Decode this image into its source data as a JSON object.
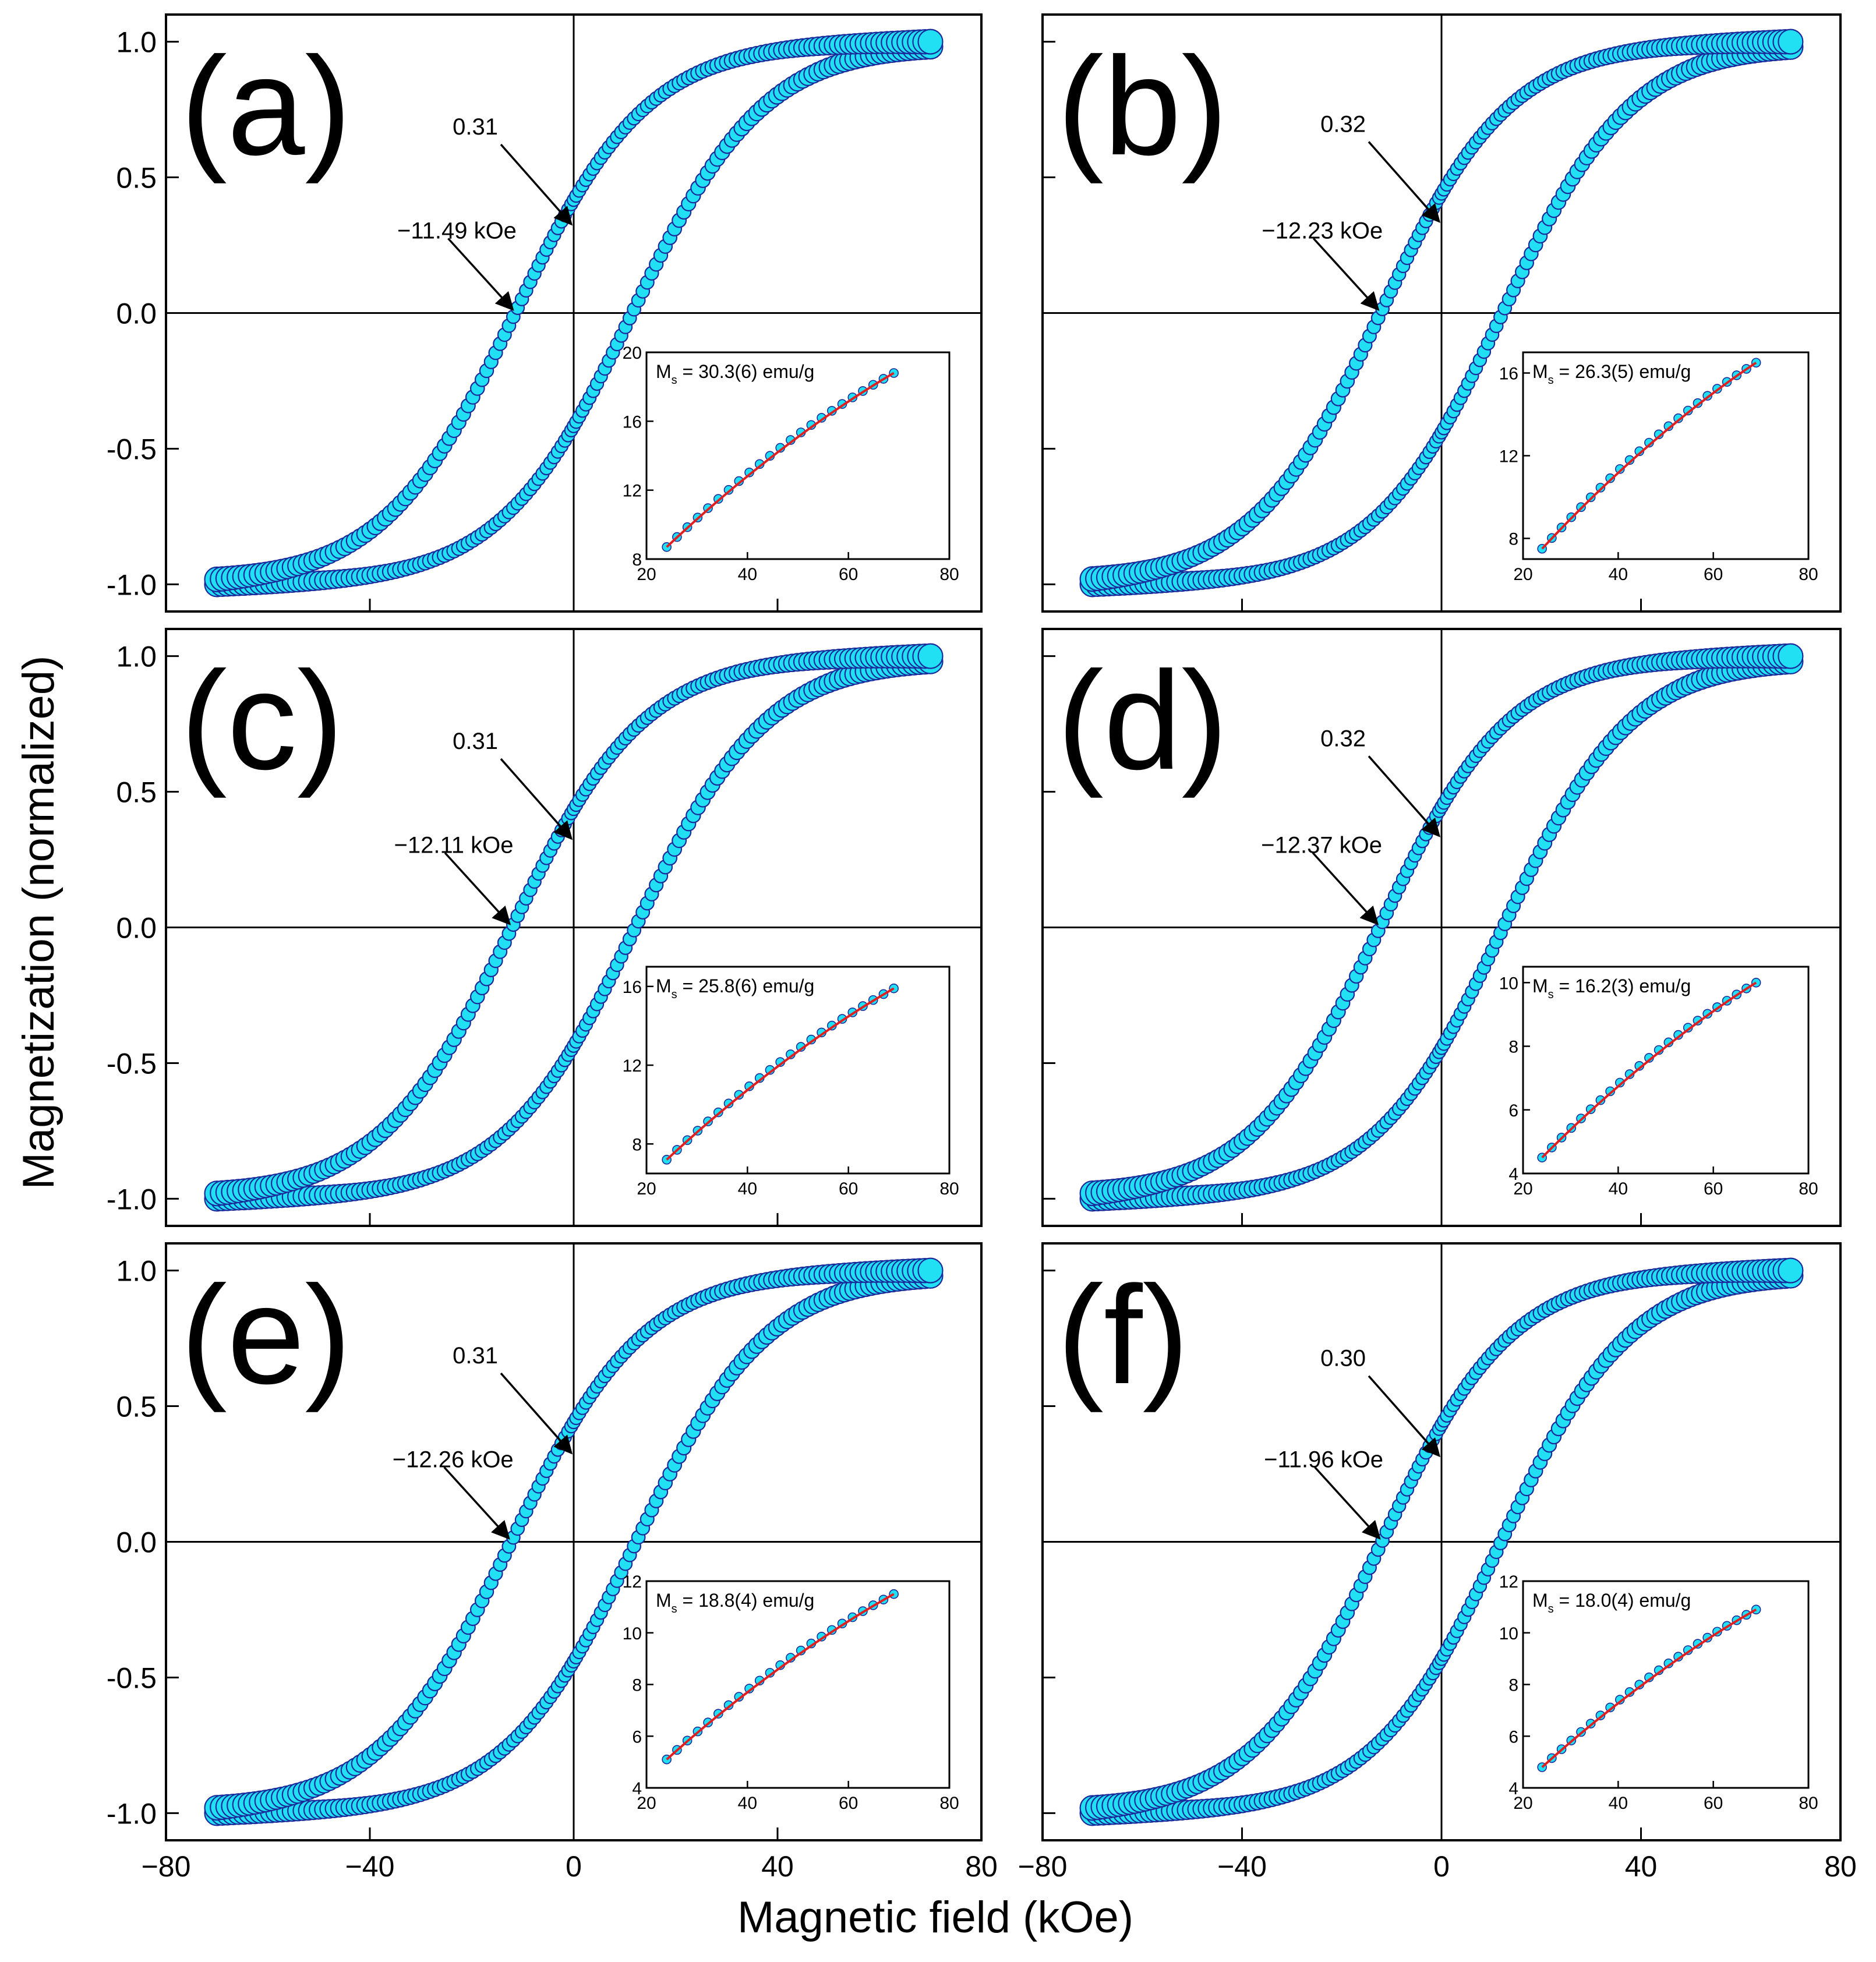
{
  "chart_data": {
    "type": "scatter",
    "xlabel": "Magnetic field (kOe)",
    "ylabel": "Magnetization (normalized)",
    "xlim": [
      -80,
      80
    ],
    "ylim": [
      -1.1,
      1.1
    ],
    "x_ticks": [
      -80,
      -40,
      0,
      40,
      80
    ],
    "x_tick_labels": [
      "−80",
      "−40",
      "0",
      "40",
      "80"
    ],
    "y_ticks": [
      1.0,
      0.5,
      0.0,
      -0.5,
      -1.0
    ],
    "y_tick_labels": [
      "1.0",
      "0.5",
      "0.0",
      "-0.5",
      "-1.0"
    ],
    "field_max": 70,
    "marker_color": "#22e0f4",
    "marker_edge_color": "#1a2a9a",
    "fit_color": "#e02020",
    "inset_xlim": [
      20,
      80
    ],
    "inset_x_ticks": [
      "20",
      "40",
      "60",
      "80"
    ],
    "inset_x_min": 24,
    "inset_x_max": 69,
    "panels": [
      {
        "label": "(a)",
        "remanence": 0.31,
        "remanence_label": "0.31",
        "coercivity": -11.49,
        "coercivity_label": "−11.49 kOe",
        "inset": {
          "ms_prefix": "M",
          "ms_sub": "s",
          "ms_value": " = 30.3(6) emu/g",
          "ylim": [
            8,
            20
          ],
          "y_ticks": [
            8,
            12,
            16,
            20
          ],
          "y_tick_labels": [
            "8",
            "12",
            "16",
            "20"
          ],
          "y_start": 8.7,
          "y_end": 18.8
        }
      },
      {
        "label": "(b)",
        "remanence": 0.32,
        "remanence_label": "0.32",
        "coercivity": -12.23,
        "coercivity_label": "−12.23 kOe",
        "inset": {
          "ms_prefix": "M",
          "ms_sub": "s",
          "ms_value": " = 26.3(5) emu/g",
          "ylim": [
            7,
            17
          ],
          "y_ticks": [
            8,
            12,
            16
          ],
          "y_tick_labels": [
            "8",
            "12",
            "16"
          ],
          "y_start": 7.5,
          "y_end": 16.5
        }
      },
      {
        "label": "(c)",
        "remanence": 0.31,
        "remanence_label": "0.31",
        "coercivity": -12.11,
        "coercivity_label": "−12.11 kOe",
        "inset": {
          "ms_prefix": "M",
          "ms_sub": "s",
          "ms_value": " = 25.8(6) emu/g",
          "ylim": [
            6.5,
            17
          ],
          "y_ticks": [
            8,
            12,
            16
          ],
          "y_tick_labels": [
            "8",
            "12",
            "16"
          ],
          "y_start": 7.2,
          "y_end": 15.9
        }
      },
      {
        "label": "(d)",
        "remanence": 0.32,
        "remanence_label": "0.32",
        "coercivity": -12.37,
        "coercivity_label": "−12.37 kOe",
        "inset": {
          "ms_prefix": "M",
          "ms_sub": "s",
          "ms_value": " = 16.2(3) emu/g",
          "ylim": [
            4,
            10.5
          ],
          "y_ticks": [
            4,
            6,
            8,
            10
          ],
          "y_tick_labels": [
            "4",
            "6",
            "8",
            "10"
          ],
          "y_start": 4.5,
          "y_end": 10.0
        }
      },
      {
        "label": "(e)",
        "remanence": 0.31,
        "remanence_label": "0.31",
        "coercivity": -12.26,
        "coercivity_label": "−12.26 kOe",
        "inset": {
          "ms_prefix": "M",
          "ms_sub": "s",
          "ms_value": " = 18.8(4) emu/g",
          "ylim": [
            4,
            12
          ],
          "y_ticks": [
            4,
            6,
            8,
            10,
            12
          ],
          "y_tick_labels": [
            "4",
            "6",
            "8",
            "10",
            "12"
          ],
          "y_start": 5.1,
          "y_end": 11.5
        }
      },
      {
        "label": "(f)",
        "remanence": 0.3,
        "remanence_label": "0.30",
        "coercivity": -11.96,
        "coercivity_label": "−11.96 kOe",
        "inset": {
          "ms_prefix": "M",
          "ms_sub": "s",
          "ms_value": " = 18.0(4) emu/g",
          "ylim": [
            4,
            12
          ],
          "y_ticks": [
            4,
            6,
            8,
            10,
            12
          ],
          "y_tick_labels": [
            "4",
            "6",
            "8",
            "10",
            "12"
          ],
          "y_start": 4.8,
          "y_end": 10.9
        }
      }
    ]
  }
}
